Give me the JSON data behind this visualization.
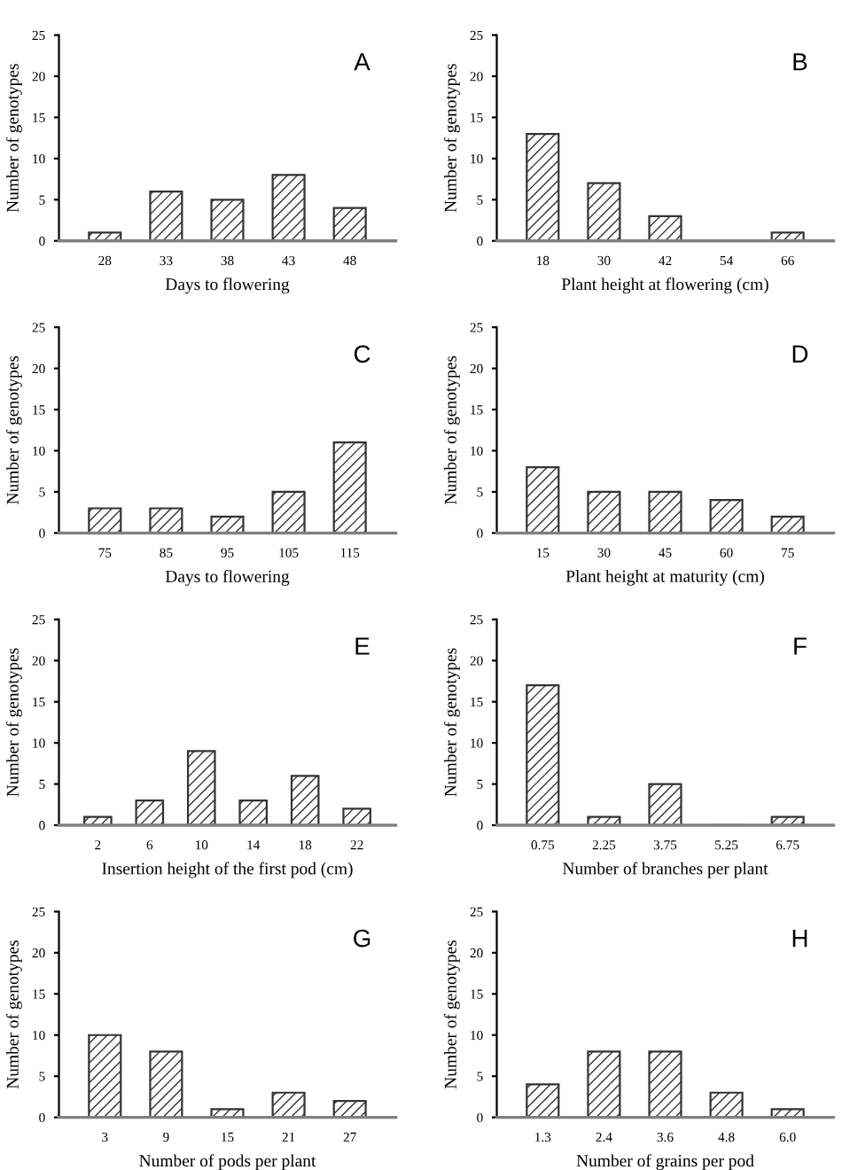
{
  "chart_data": [
    {
      "type": "bar",
      "categories": [
        "28",
        "33",
        "38",
        "43",
        "48"
      ],
      "values": [
        1,
        6,
        5,
        8,
        4
      ],
      "color": "#333333",
      "xlabel": "Days to flowering",
      "ylabel": "Number of genotypes",
      "ylim": [
        0,
        25
      ],
      "yticks": [
        0,
        5,
        10,
        15,
        20,
        25
      ],
      "annotations": [
        "A"
      ]
    },
    {
      "type": "bar",
      "categories": [
        "18",
        "30",
        "42",
        "54",
        "66"
      ],
      "values": [
        13,
        7,
        3,
        0,
        1
      ],
      "color": "#333333",
      "xlabel": "Plant height at flowering (cm)",
      "ylabel": "Number of genotypes",
      "ylim": [
        0,
        25
      ],
      "yticks": [
        0,
        5,
        10,
        15,
        20,
        25
      ],
      "annotations": [
        "B"
      ]
    },
    {
      "type": "bar",
      "categories": [
        "75",
        "85",
        "95",
        "105",
        "115"
      ],
      "values": [
        3,
        3,
        2,
        5,
        11
      ],
      "color": "#333333",
      "xlabel": "Days to flowering",
      "ylabel": "Number of genotypes",
      "ylim": [
        0,
        25
      ],
      "yticks": [
        0,
        5,
        10,
        15,
        20,
        25
      ],
      "annotations": [
        "C"
      ]
    },
    {
      "type": "bar",
      "categories": [
        "15",
        "30",
        "45",
        "60",
        "75"
      ],
      "values": [
        8,
        5,
        5,
        4,
        2
      ],
      "color": "#333333",
      "xlabel": "Plant height at maturity (cm)",
      "ylabel": "Number of genotypes",
      "ylim": [
        0,
        25
      ],
      "yticks": [
        0,
        5,
        10,
        15,
        20,
        25
      ],
      "annotations": [
        "D"
      ]
    },
    {
      "type": "bar",
      "categories": [
        "2",
        "6",
        "10",
        "14",
        "18",
        "22"
      ],
      "values": [
        1,
        3,
        9,
        3,
        6,
        2
      ],
      "color": "#333333",
      "xlabel": "Insertion height of the first pod (cm)",
      "ylabel": "Number of genotypes",
      "ylim": [
        0,
        25
      ],
      "yticks": [
        0,
        5,
        10,
        15,
        20,
        25
      ],
      "annotations": [
        "E"
      ]
    },
    {
      "type": "bar",
      "categories": [
        "0.75",
        "2.25",
        "3.75",
        "5.25",
        "6.75"
      ],
      "values": [
        17,
        1,
        5,
        0,
        1
      ],
      "color": "#333333",
      "xlabel": "Number of branches per plant",
      "ylabel": "Number of genotypes",
      "ylim": [
        0,
        25
      ],
      "yticks": [
        0,
        5,
        10,
        15,
        20,
        25
      ],
      "annotations": [
        "F"
      ]
    },
    {
      "type": "bar",
      "categories": [
        "3",
        "9",
        "15",
        "21",
        "27"
      ],
      "values": [
        10,
        8,
        1,
        3,
        2
      ],
      "color": "#333333",
      "xlabel": "Number of pods per plant",
      "ylabel": "Number of genotypes",
      "ylim": [
        0,
        25
      ],
      "yticks": [
        0,
        5,
        10,
        15,
        20,
        25
      ],
      "annotations": [
        "G"
      ]
    },
    {
      "type": "bar",
      "categories": [
        "1.3",
        "2.4",
        "3.6",
        "4.8",
        "6.0"
      ],
      "values": [
        4,
        8,
        8,
        3,
        1
      ],
      "color": "#333333",
      "xlabel": "Number of grains per pod",
      "ylabel": "Number of genotypes",
      "ylim": [
        0,
        25
      ],
      "yticks": [
        0,
        5,
        10,
        15,
        20,
        25
      ],
      "annotations": [
        "H"
      ]
    }
  ]
}
